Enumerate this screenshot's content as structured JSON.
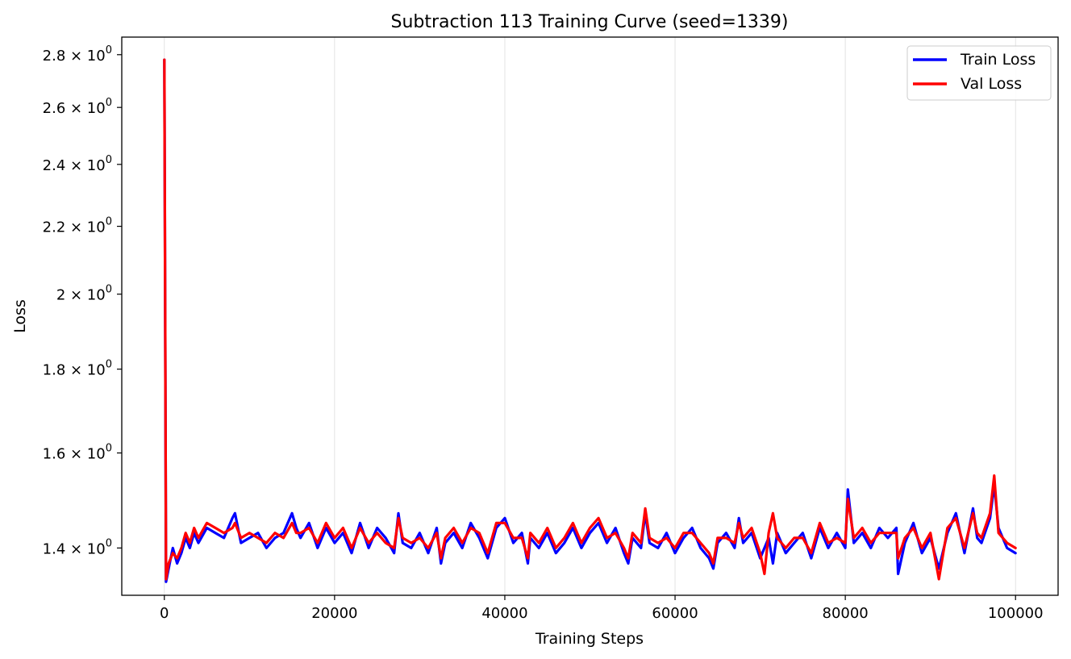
{
  "chart_data": {
    "type": "line",
    "title": "Subtraction 113 Training Curve (seed=1339)",
    "xlabel": "Training Steps",
    "ylabel": "Loss",
    "xlim": [
      -5000,
      105000
    ],
    "ylim": [
      1.31,
      2.87
    ],
    "y_scale": "log",
    "grid": "vertical",
    "legend_position": "top-right",
    "x_ticks": [
      0,
      20000,
      40000,
      60000,
      80000,
      100000
    ],
    "x_tick_labels": [
      "0",
      "20000",
      "40000",
      "60000",
      "80000",
      "100000"
    ],
    "y_ticks": [
      1.4,
      1.6,
      1.8,
      2.0,
      2.2,
      2.4,
      2.6,
      2.8
    ],
    "y_tick_labels": [
      {
        "mantissa": "1.4 × 10",
        "exp": "0"
      },
      {
        "mantissa": "1.6 × 10",
        "exp": "0"
      },
      {
        "mantissa": "1.8 × 10",
        "exp": "0"
      },
      {
        "mantissa": "2 × 10",
        "exp": "0"
      },
      {
        "mantissa": "2.2 × 10",
        "exp": "0"
      },
      {
        "mantissa": "2.4 × 10",
        "exp": "0"
      },
      {
        "mantissa": "2.6 × 10",
        "exp": "0"
      },
      {
        "mantissa": "2.8 × 10",
        "exp": "0"
      }
    ],
    "x": [
      0,
      200,
      500,
      1000,
      1500,
      2000,
      2500,
      3000,
      3500,
      4000,
      5000,
      6000,
      7000,
      8000,
      8300,
      9000,
      10000,
      11000,
      12000,
      13000,
      14000,
      15000,
      15500,
      16000,
      17000,
      18000,
      19000,
      20000,
      21000,
      22000,
      23000,
      24000,
      25000,
      26000,
      27000,
      27500,
      28000,
      29000,
      30000,
      31000,
      32000,
      32500,
      33000,
      34000,
      35000,
      36000,
      37000,
      38000,
      39000,
      40000,
      41000,
      42000,
      42700,
      43000,
      44000,
      45000,
      46000,
      47000,
      48000,
      49000,
      50000,
      51000,
      52000,
      53000,
      54000,
      54500,
      55000,
      56000,
      56500,
      57000,
      58000,
      59000,
      60000,
      61000,
      62000,
      63000,
      64000,
      64500,
      65000,
      66000,
      67000,
      67500,
      68000,
      69000,
      70000,
      70500,
      71000,
      71500,
      72000,
      73000,
      74000,
      75000,
      76000,
      77000,
      78000,
      79000,
      80000,
      80300,
      81000,
      82000,
      83000,
      84000,
      85000,
      86000,
      86200,
      87000,
      88000,
      89000,
      90000,
      91000,
      92000,
      93000,
      94000,
      95000,
      95500,
      96000,
      97000,
      97500,
      98000,
      99000,
      100000
    ],
    "series": [
      {
        "name": "Train Loss",
        "color": "#0000ff",
        "values": [
          2.78,
          1.335,
          1.36,
          1.4,
          1.37,
          1.39,
          1.42,
          1.4,
          1.43,
          1.41,
          1.44,
          1.43,
          1.42,
          1.46,
          1.47,
          1.41,
          1.42,
          1.43,
          1.4,
          1.42,
          1.43,
          1.47,
          1.44,
          1.42,
          1.45,
          1.4,
          1.44,
          1.41,
          1.43,
          1.39,
          1.45,
          1.4,
          1.44,
          1.42,
          1.39,
          1.47,
          1.41,
          1.4,
          1.43,
          1.39,
          1.44,
          1.37,
          1.41,
          1.43,
          1.4,
          1.45,
          1.42,
          1.38,
          1.44,
          1.46,
          1.41,
          1.43,
          1.37,
          1.42,
          1.4,
          1.43,
          1.39,
          1.41,
          1.44,
          1.4,
          1.43,
          1.45,
          1.41,
          1.44,
          1.39,
          1.37,
          1.42,
          1.4,
          1.47,
          1.41,
          1.4,
          1.43,
          1.39,
          1.42,
          1.44,
          1.4,
          1.38,
          1.36,
          1.41,
          1.43,
          1.4,
          1.46,
          1.41,
          1.43,
          1.38,
          1.4,
          1.42,
          1.37,
          1.43,
          1.39,
          1.41,
          1.43,
          1.38,
          1.44,
          1.4,
          1.43,
          1.4,
          1.52,
          1.41,
          1.43,
          1.4,
          1.44,
          1.42,
          1.44,
          1.35,
          1.41,
          1.45,
          1.39,
          1.42,
          1.36,
          1.43,
          1.47,
          1.39,
          1.48,
          1.42,
          1.41,
          1.46,
          1.53,
          1.44,
          1.4,
          1.39
        ]
      },
      {
        "name": "Val Loss",
        "color": "#ff0000",
        "values": [
          2.78,
          1.34,
          1.37,
          1.39,
          1.38,
          1.4,
          1.43,
          1.41,
          1.44,
          1.42,
          1.45,
          1.44,
          1.43,
          1.44,
          1.45,
          1.42,
          1.43,
          1.42,
          1.41,
          1.43,
          1.42,
          1.45,
          1.43,
          1.43,
          1.44,
          1.41,
          1.45,
          1.42,
          1.44,
          1.4,
          1.44,
          1.41,
          1.43,
          1.41,
          1.4,
          1.46,
          1.42,
          1.41,
          1.42,
          1.4,
          1.43,
          1.38,
          1.42,
          1.44,
          1.41,
          1.44,
          1.43,
          1.39,
          1.45,
          1.45,
          1.42,
          1.42,
          1.38,
          1.43,
          1.41,
          1.44,
          1.4,
          1.42,
          1.45,
          1.41,
          1.44,
          1.46,
          1.42,
          1.43,
          1.4,
          1.38,
          1.43,
          1.41,
          1.48,
          1.42,
          1.41,
          1.42,
          1.4,
          1.43,
          1.43,
          1.41,
          1.39,
          1.37,
          1.42,
          1.42,
          1.41,
          1.45,
          1.42,
          1.44,
          1.39,
          1.35,
          1.43,
          1.47,
          1.42,
          1.4,
          1.42,
          1.42,
          1.39,
          1.45,
          1.41,
          1.42,
          1.41,
          1.5,
          1.42,
          1.44,
          1.41,
          1.43,
          1.43,
          1.43,
          1.38,
          1.42,
          1.44,
          1.4,
          1.43,
          1.34,
          1.44,
          1.46,
          1.4,
          1.47,
          1.43,
          1.42,
          1.47,
          1.55,
          1.43,
          1.41,
          1.4
        ]
      }
    ]
  }
}
